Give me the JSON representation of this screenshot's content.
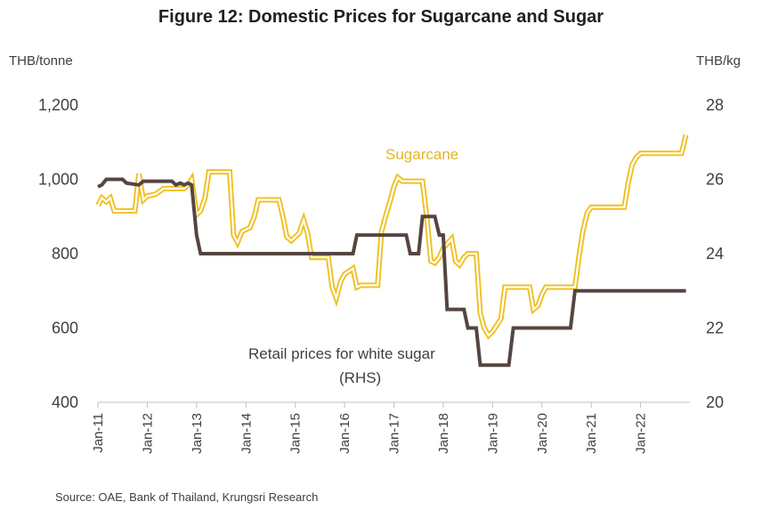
{
  "chart_data": {
    "type": "line",
    "title": "Figure 12: Domestic Prices for Sugarcane and Sugar",
    "y_left_label": "THB/tonne",
    "y_right_label": "THB/kg",
    "y_left_lim": [
      400,
      1200
    ],
    "y_right_lim": [
      20,
      28
    ],
    "y_left_ticks": [
      "1,200",
      "1,000",
      "800",
      "600",
      "400"
    ],
    "y_left_tick_values": [
      1200,
      1000,
      800,
      600,
      400
    ],
    "y_right_ticks": [
      "28",
      "26",
      "24",
      "22",
      "20"
    ],
    "y_right_tick_values": [
      28,
      26,
      24,
      22,
      20
    ],
    "x_lim": [
      2011.0,
      2023.0
    ],
    "x_ticks": [
      "Jan-11",
      "Jan-12",
      "Jan-13",
      "Jan-14",
      "Jan-15",
      "Jan-16",
      "Jan-17",
      "Jan-18",
      "Jan-19",
      "Jan-20",
      "Jan-21",
      "Jan-22"
    ],
    "x_tick_values": [
      2011,
      2012,
      2013,
      2014,
      2015,
      2016,
      2017,
      2018,
      2019,
      2020,
      2021,
      2022
    ],
    "grid": false,
    "legend": "none",
    "annotations": [
      {
        "text": "Sugarcane",
        "target": "sugarcane"
      },
      {
        "text": "Retail prices for white sugar",
        "target": "retail"
      },
      {
        "text": "(RHS)",
        "target": "retail"
      }
    ],
    "series": [
      {
        "name": "Sugarcane",
        "axis": "left",
        "color": "#f0c020",
        "style": "double-line",
        "points": [
          [
            2011.0,
            930
          ],
          [
            2011.08,
            950
          ],
          [
            2011.17,
            940
          ],
          [
            2011.25,
            950
          ],
          [
            2011.33,
            915
          ],
          [
            2011.75,
            915
          ],
          [
            2011.83,
            1015
          ],
          [
            2011.92,
            945
          ],
          [
            2012.0,
            955
          ],
          [
            2012.17,
            960
          ],
          [
            2012.33,
            975
          ],
          [
            2012.75,
            975
          ],
          [
            2012.83,
            985
          ],
          [
            2012.9,
            1000
          ],
          [
            2013.0,
            905
          ],
          [
            2013.08,
            915
          ],
          [
            2013.17,
            950
          ],
          [
            2013.25,
            1020
          ],
          [
            2013.67,
            1020
          ],
          [
            2013.75,
            850
          ],
          [
            2013.83,
            830
          ],
          [
            2013.92,
            860
          ],
          [
            2014.08,
            870
          ],
          [
            2014.17,
            900
          ],
          [
            2014.25,
            945
          ],
          [
            2014.67,
            945
          ],
          [
            2014.75,
            900
          ],
          [
            2014.83,
            845
          ],
          [
            2014.92,
            835
          ],
          [
            2015.08,
            855
          ],
          [
            2015.17,
            890
          ],
          [
            2015.25,
            855
          ],
          [
            2015.33,
            790
          ],
          [
            2015.67,
            790
          ],
          [
            2015.75,
            710
          ],
          [
            2015.83,
            680
          ],
          [
            2015.92,
            725
          ],
          [
            2016.0,
            745
          ],
          [
            2016.17,
            760
          ],
          [
            2016.25,
            710
          ],
          [
            2016.33,
            715
          ],
          [
            2016.67,
            715
          ],
          [
            2016.75,
            860
          ],
          [
            2016.83,
            900
          ],
          [
            2016.92,
            940
          ],
          [
            2017.0,
            980
          ],
          [
            2017.08,
            1005
          ],
          [
            2017.17,
            995
          ],
          [
            2017.58,
            995
          ],
          [
            2017.67,
            895
          ],
          [
            2017.75,
            780
          ],
          [
            2017.83,
            775
          ],
          [
            2017.92,
            790
          ],
          [
            2018.0,
            815
          ],
          [
            2018.17,
            840
          ],
          [
            2018.25,
            780
          ],
          [
            2018.33,
            770
          ],
          [
            2018.42,
            790
          ],
          [
            2018.5,
            800
          ],
          [
            2018.67,
            800
          ],
          [
            2018.75,
            640
          ],
          [
            2018.83,
            600
          ],
          [
            2018.92,
            580
          ],
          [
            2019.0,
            590
          ],
          [
            2019.17,
            625
          ],
          [
            2019.25,
            710
          ],
          [
            2019.75,
            710
          ],
          [
            2019.83,
            650
          ],
          [
            2019.92,
            660
          ],
          [
            2020.0,
            690
          ],
          [
            2020.08,
            710
          ],
          [
            2020.67,
            710
          ],
          [
            2020.75,
            790
          ],
          [
            2020.83,
            860
          ],
          [
            2020.92,
            910
          ],
          [
            2021.0,
            925
          ],
          [
            2021.67,
            925
          ],
          [
            2021.75,
            990
          ],
          [
            2021.83,
            1040
          ],
          [
            2021.92,
            1060
          ],
          [
            2022.0,
            1070
          ],
          [
            2022.83,
            1070
          ],
          [
            2022.92,
            1120
          ]
        ]
      },
      {
        "name": "Retail prices for white sugar",
        "axis": "right",
        "color": "#554541",
        "style": "solid",
        "points": [
          [
            2011.0,
            25.8
          ],
          [
            2011.08,
            25.85
          ],
          [
            2011.17,
            26.0
          ],
          [
            2011.5,
            26.0
          ],
          [
            2011.58,
            25.9
          ],
          [
            2011.83,
            25.85
          ],
          [
            2011.92,
            25.95
          ],
          [
            2012.5,
            25.95
          ],
          [
            2012.58,
            25.85
          ],
          [
            2012.67,
            25.9
          ],
          [
            2012.75,
            25.85
          ],
          [
            2012.83,
            25.9
          ],
          [
            2012.9,
            25.85
          ],
          [
            2013.0,
            24.5
          ],
          [
            2013.08,
            24.0
          ],
          [
            2016.17,
            24.0
          ],
          [
            2016.25,
            24.5
          ],
          [
            2017.25,
            24.5
          ],
          [
            2017.33,
            24.0
          ],
          [
            2017.5,
            24.0
          ],
          [
            2017.58,
            25.0
          ],
          [
            2017.83,
            25.0
          ],
          [
            2017.92,
            24.5
          ],
          [
            2018.0,
            24.5
          ],
          [
            2018.08,
            22.5
          ],
          [
            2018.42,
            22.5
          ],
          [
            2018.5,
            22.0
          ],
          [
            2018.67,
            22.0
          ],
          [
            2018.75,
            21.0
          ],
          [
            2019.33,
            21.0
          ],
          [
            2019.42,
            22.0
          ],
          [
            2020.58,
            22.0
          ],
          [
            2020.67,
            23.0
          ],
          [
            2022.92,
            23.0
          ]
        ]
      }
    ]
  }
}
